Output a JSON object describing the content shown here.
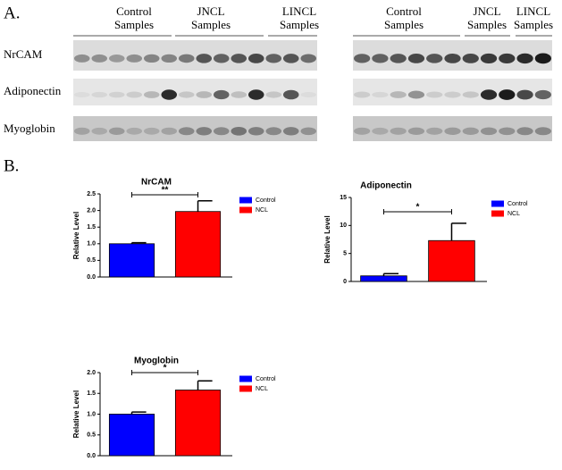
{
  "panel_a": {
    "label": "A.",
    "headers": [
      [
        "Control",
        "Samples"
      ],
      [
        "JNCL",
        "Samples"
      ],
      [
        "LINCL",
        "Samples"
      ],
      [
        "Control",
        "Samples"
      ],
      [
        "JNCL",
        "Samples"
      ],
      [
        "LINCL",
        "Samples"
      ]
    ],
    "rows": [
      "NrCAM",
      "Adiponectin",
      "Myoglobin"
    ]
  },
  "panel_b": {
    "label": "B."
  },
  "chart_data": [
    {
      "type": "bar",
      "title": "NrCAM",
      "y_label": "Relative Level",
      "annotation": "**",
      "ylim": [
        0,
        2.5
      ],
      "yticks": [
        {
          "value": 0,
          "label": "0.0"
        },
        0.5,
        {
          "value": 1,
          "label": "1.0"
        },
        1.5,
        {
          "value": 2,
          "label": "2.0"
        },
        2.5
      ],
      "series": [
        {
          "name": "Control",
          "color": "#0000ff",
          "values": [
            1.0
          ],
          "errors": [
            0.03
          ]
        },
        {
          "name": "NCL",
          "color": "#ff0000",
          "values": [
            1.97
          ],
          "errors": [
            0.32
          ]
        }
      ]
    },
    {
      "type": "bar",
      "title": "Adiponectin",
      "y_label": "Relative Level",
      "annotation": "*",
      "ylim": [
        0,
        15
      ],
      "yticks": [
        0,
        5,
        10,
        15
      ],
      "series": [
        {
          "name": "Control",
          "color": "#0000ff",
          "values": [
            1.0
          ],
          "errors": [
            0.4
          ]
        },
        {
          "name": "NCL",
          "color": "#ff0000",
          "values": [
            7.3
          ],
          "errors": [
            3.1
          ]
        }
      ]
    },
    {
      "type": "bar",
      "title": "Myoglobin",
      "y_label": "Relative Level",
      "annotation": "*",
      "ylim": [
        0,
        2.0
      ],
      "yticks": [
        {
          "value": 0,
          "label": "0.0"
        },
        0.5,
        {
          "value": 1,
          "label": "1.0"
        },
        1.5,
        {
          "value": 2,
          "label": "2.0"
        }
      ],
      "series": [
        {
          "name": "Control",
          "color": "#0000ff",
          "values": [
            1.0
          ],
          "errors": [
            0.05
          ]
        },
        {
          "name": "NCL",
          "color": "#ff0000",
          "values": [
            1.58
          ],
          "errors": [
            0.22
          ]
        }
      ]
    }
  ]
}
